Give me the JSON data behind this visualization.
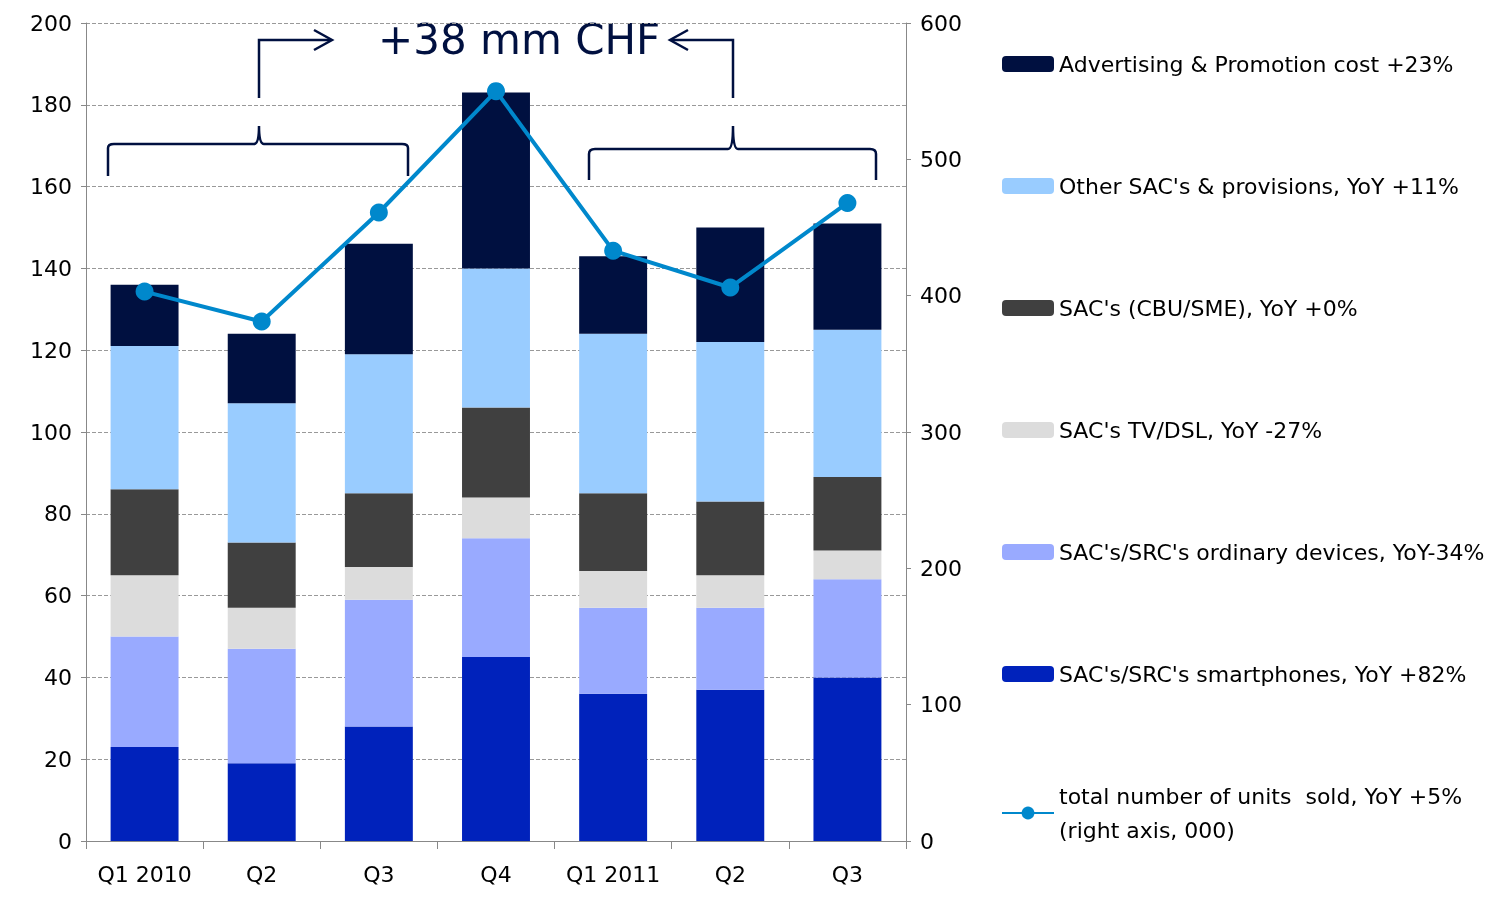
{
  "chart_data": {
    "type": "bar",
    "stacked": true,
    "categories": [
      "Q1 2010",
      "Q2",
      "Q3",
      "Q4",
      "Q1 2011",
      "Q2",
      "Q3"
    ],
    "series": [
      {
        "name": "SAC's/SRC's smartphones, YoY +82%",
        "color": "#0022bb",
        "values": [
          23,
          19,
          28,
          45,
          36,
          37,
          40
        ]
      },
      {
        "name": "SAC's/SRC's ordinary devices, YoY-34%",
        "color": "#99aaff",
        "values": [
          27,
          28,
          31,
          29,
          21,
          20,
          24
        ]
      },
      {
        "name": "SAC's TV/DSL, YoY -27%",
        "color": "#dcdcdc",
        "values": [
          15,
          10,
          8,
          10,
          9,
          8,
          7
        ]
      },
      {
        "name": "SAC's (CBU/SME), YoY +0%",
        "color": "#404040",
        "values": [
          21,
          16,
          18,
          22,
          19,
          18,
          18
        ]
      },
      {
        "name": "Other SAC's & provisions, YoY +11%",
        "color": "#99ccff",
        "values": [
          35,
          34,
          34,
          34,
          39,
          39,
          36
        ]
      },
      {
        "name": "Advertising & Promotion cost +23%",
        "color": "#001040",
        "values": [
          15,
          17,
          27,
          43,
          19,
          28,
          26
        ]
      },
      {
        "name": "total number of units  sold, YoY +5% (right axis, 000)",
        "type": "line",
        "axis": "y2",
        "color": "#0088cc",
        "values": [
          403,
          381,
          461,
          550,
          433,
          406,
          468
        ]
      }
    ],
    "ylim": [
      0,
      200
    ],
    "yticks": [
      0,
      20,
      40,
      60,
      80,
      100,
      120,
      140,
      160,
      180,
      200
    ],
    "y2lim": [
      0,
      600
    ],
    "y2ticks": [
      0,
      100,
      200,
      300,
      400,
      500,
      600
    ],
    "annotations": [
      "+38 mm CHF"
    ],
    "grid": "y",
    "legend": "right",
    "marker": "circle",
    "line_style": "solid"
  }
}
